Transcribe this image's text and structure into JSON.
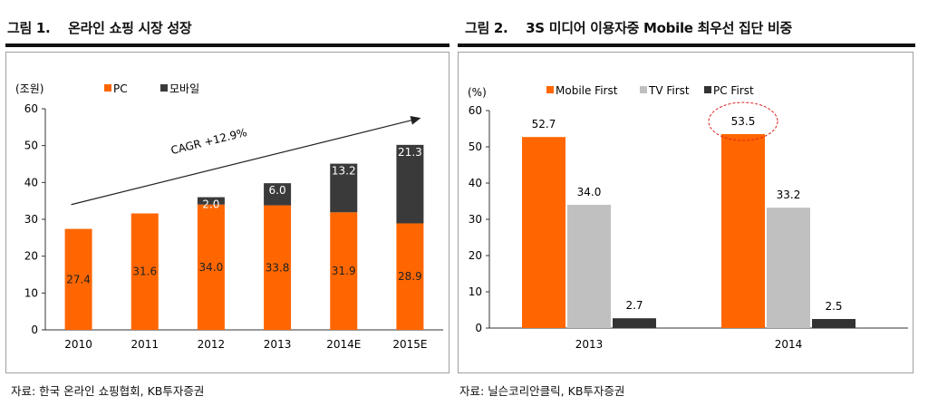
{
  "figures": [
    {
      "title": "그림 1.    온라인 쇼핑 시장 성장",
      "source": "자료: 한국 온라인 쇼핑협회, KB투자증권"
    },
    {
      "title": "그림 2.    3S 미디어 이용자중 Mobile 최우선 집단 비중",
      "source": "자료: 닐슨코리안클릭, KB투자증권"
    }
  ],
  "chart_data": [
    {
      "type": "bar",
      "stacked": true,
      "unit_label": "(조원)",
      "categories": [
        "2010",
        "2011",
        "2012",
        "2013",
        "2014E",
        "2015E"
      ],
      "series": [
        {
          "name": "PC",
          "color": "#ff6600",
          "values": [
            27.4,
            31.6,
            34.0,
            33.8,
            31.9,
            28.9
          ],
          "labels": [
            "27.4",
            "31.6",
            "34.0",
            "33.8",
            "31.9",
            "28.9"
          ]
        },
        {
          "name": "모바일",
          "color": "#3a3a3a",
          "values": [
            0,
            0,
            2.0,
            6.0,
            13.2,
            21.3
          ],
          "labels": [
            "",
            "",
            "2.0",
            "6.0",
            "13.2",
            "21.3"
          ]
        }
      ],
      "ylim": [
        0,
        60
      ],
      "yticks": [
        0,
        10,
        20,
        30,
        40,
        50,
        60
      ],
      "annotation": "CAGR +12.9%",
      "grid": false,
      "legend": "top-left"
    },
    {
      "type": "bar",
      "unit_label": "(%)",
      "categories": [
        "2013",
        "2014"
      ],
      "series": [
        {
          "name": "Mobile First",
          "color": "#ff6600",
          "values": [
            52.7,
            53.5
          ],
          "labels": [
            "52.7",
            "53.5"
          ]
        },
        {
          "name": "TV First",
          "color": "#c0c0c0",
          "values": [
            34.0,
            33.2
          ],
          "labels": [
            "34.0",
            "33.2"
          ]
        },
        {
          "name": "PC First",
          "color": "#333333",
          "values": [
            2.7,
            2.5
          ],
          "labels": [
            "2.7",
            "2.5"
          ]
        }
      ],
      "ylim": [
        0,
        60
      ],
      "yticks": [
        0,
        10,
        20,
        30,
        40,
        50,
        60
      ],
      "highlight": {
        "category": "2014",
        "series": "Mobile First",
        "style": "red-dashed-ellipse"
      },
      "grid": false,
      "legend": "top"
    }
  ]
}
